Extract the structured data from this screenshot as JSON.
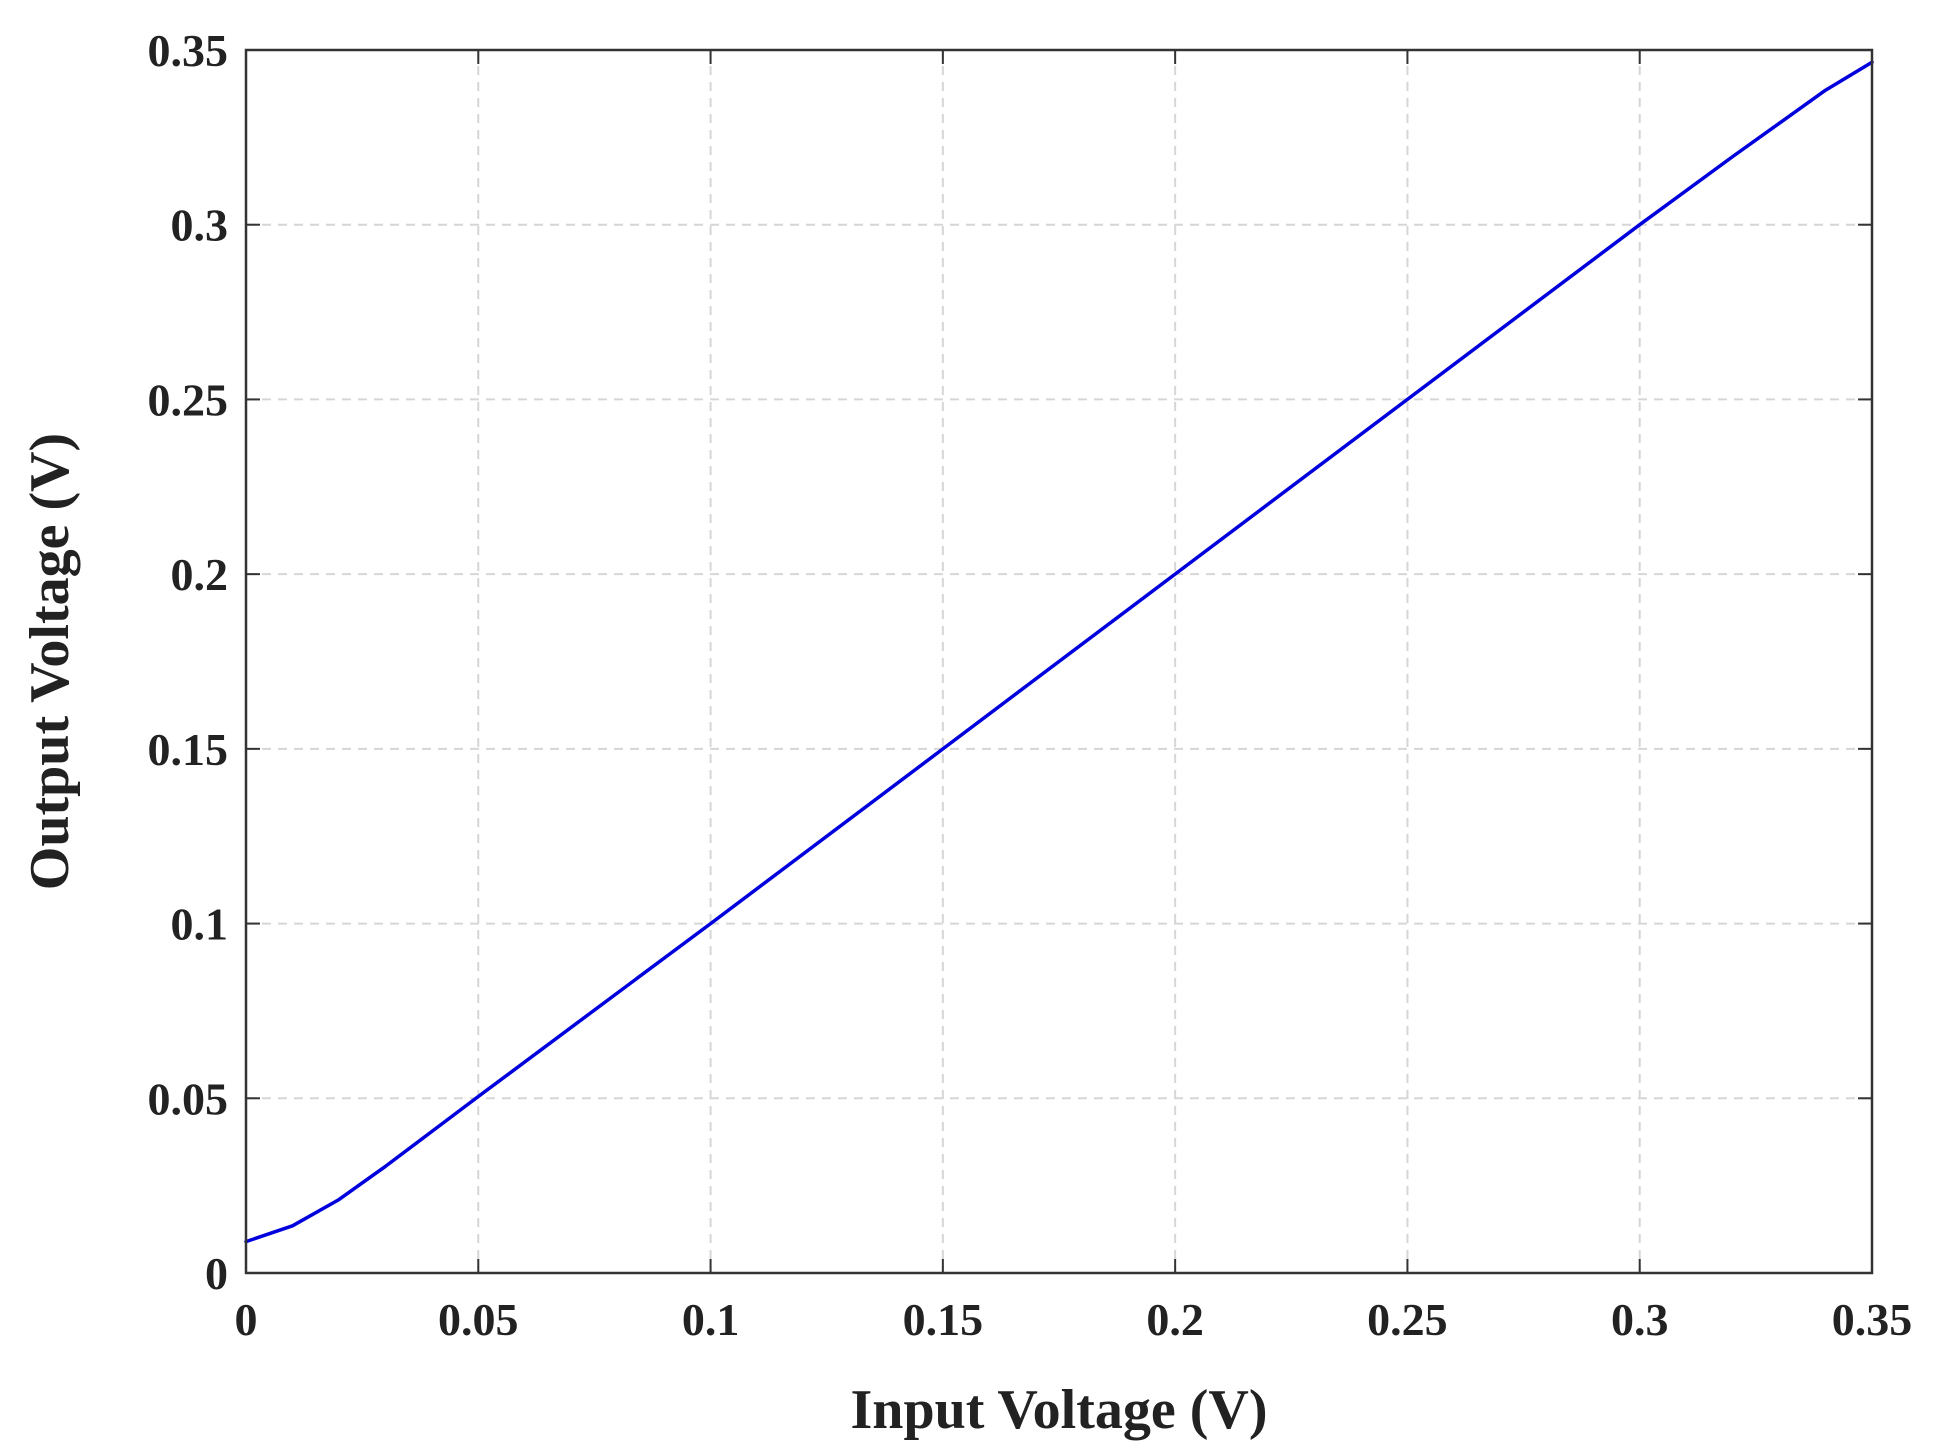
{
  "chart_data": {
    "type": "line",
    "title": "",
    "xlabel": "Input Voltage (V)",
    "ylabel": "Output Voltage (V)",
    "xlim": [
      0,
      0.35
    ],
    "ylim": [
      0,
      0.35
    ],
    "x_ticks": [
      "0",
      "0.05",
      "0.1",
      "0.15",
      "0.2",
      "0.25",
      "0.3",
      "0.35"
    ],
    "y_ticks": [
      "0",
      "0.05",
      "0.1",
      "0.15",
      "0.2",
      "0.25",
      "0.3",
      "0.35"
    ],
    "grid": true,
    "series": [
      {
        "color": "#0000dd",
        "x": [
          0,
          0.01,
          0.02,
          0.03,
          0.04,
          0.05,
          0.1,
          0.15,
          0.2,
          0.25,
          0.3,
          0.32,
          0.33,
          0.34,
          0.35
        ],
        "y": [
          0.009,
          0.0135,
          0.021,
          0.0305,
          0.0405,
          0.0505,
          0.1,
          0.15,
          0.2,
          0.25,
          0.3,
          0.3195,
          0.329,
          0.3385,
          0.3465
        ]
      }
    ]
  }
}
